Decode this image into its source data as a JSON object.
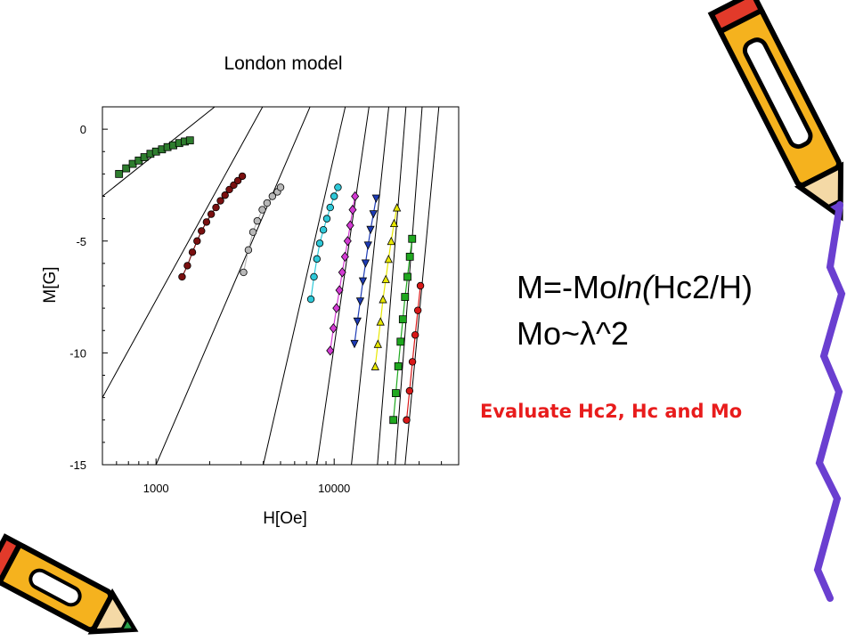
{
  "slide": {
    "formula_line1_prefix": "M=-Mo",
    "formula_line1_ln": "ln(",
    "formula_line1_suffix": "Hc2/H)",
    "formula_line2": "Mo~λ^2",
    "note": "Evaluate Hc2, Hc and Mo",
    "note_color": "#e81c1c",
    "decorations": [
      "pencil-icon",
      "pencil-icon"
    ]
  },
  "chart_data": {
    "type": "scatter",
    "title": "London model",
    "xlabel": "H[Oe]",
    "ylabel": "M[G]",
    "xscale": "log",
    "xlim": [
      500,
      50000
    ],
    "ylim": [
      -15,
      1
    ],
    "xticks": [
      1000,
      10000
    ],
    "xtick_labels": [
      "1000",
      "10000"
    ],
    "yticks": [
      0,
      -5,
      -10,
      -15
    ],
    "ytick_labels": [
      "0",
      "-5",
      "-10",
      "-15"
    ],
    "grid": false,
    "legend": "none",
    "fit_lines": [
      {
        "x": [
          500,
          3300
        ],
        "y": [
          -3.0,
          2.2
        ]
      },
      {
        "x": [
          500,
          4800
        ],
        "y": [
          -12.0,
          2.2
        ]
      },
      {
        "x": [
          1000,
          8500
        ],
        "y": [
          -15.0,
          2.2
        ]
      },
      {
        "x": [
          4000,
          12500
        ],
        "y": [
          -15.0,
          2.2
        ]
      },
      {
        "x": [
          8000,
          16500
        ],
        "y": [
          -15.0,
          2.2
        ]
      },
      {
        "x": [
          12500,
          21000
        ],
        "y": [
          -15.0,
          2.2
        ]
      },
      {
        "x": [
          17500,
          26000
        ],
        "y": [
          -15.0,
          2.2
        ]
      },
      {
        "x": [
          22000,
          32000
        ],
        "y": [
          -15.0,
          2.2
        ]
      },
      {
        "x": [
          25000,
          40000
        ],
        "y": [
          -15.0,
          2.2
        ]
      }
    ],
    "series": [
      {
        "color": "#2e7d2e",
        "marker": "square",
        "x": [
          620,
          680,
          740,
          800,
          860,
          930,
          1000,
          1080,
          1160,
          1250,
          1350,
          1450,
          1550
        ],
        "y": [
          -2.0,
          -1.75,
          -1.55,
          -1.4,
          -1.25,
          -1.1,
          -1.0,
          -0.9,
          -0.8,
          -0.72,
          -0.62,
          -0.55,
          -0.5
        ]
      },
      {
        "color": "#7a1010",
        "marker": "circle",
        "x": [
          1400,
          1500,
          1600,
          1700,
          1800,
          1920,
          2040,
          2170,
          2300,
          2440,
          2580,
          2730,
          2880,
          3050
        ],
        "y": [
          -6.6,
          -6.1,
          -5.5,
          -5.0,
          -4.55,
          -4.15,
          -3.8,
          -3.5,
          -3.2,
          -2.95,
          -2.7,
          -2.5,
          -2.3,
          -2.1
        ]
      },
      {
        "color": "#b8b8b8",
        "marker": "circle",
        "x": [
          3100,
          3300,
          3500,
          3700,
          3950,
          4200,
          4500,
          4800,
          5000
        ],
        "y": [
          -6.4,
          -5.4,
          -4.6,
          -4.1,
          -3.6,
          -3.3,
          -3.0,
          -2.8,
          -2.6
        ]
      },
      {
        "color": "#2ec8d8",
        "marker": "circle",
        "x": [
          7400,
          7700,
          8000,
          8300,
          8700,
          9100,
          9500,
          10000,
          10500
        ],
        "y": [
          -7.6,
          -6.6,
          -5.8,
          -5.1,
          -4.5,
          -4.0,
          -3.5,
          -3.0,
          -2.6
        ]
      },
      {
        "color": "#d23ad2",
        "marker": "diamond",
        "x": [
          9500,
          9900,
          10300,
          10700,
          11100,
          11500,
          11900,
          12300,
          12700,
          13100
        ],
        "y": [
          -9.9,
          -8.9,
          -8.0,
          -7.2,
          -6.4,
          -5.7,
          -5.0,
          -4.3,
          -3.6,
          -3.0
        ]
      },
      {
        "color": "#1d3bb5",
        "marker": "tri-down",
        "x": [
          13000,
          13500,
          14000,
          14500,
          15000,
          15500,
          16000,
          16600,
          17200
        ],
        "y": [
          -9.6,
          -8.6,
          -7.7,
          -6.8,
          -6.0,
          -5.2,
          -4.5,
          -3.8,
          -3.1
        ]
      },
      {
        "color": "#e8e800",
        "marker": "tri-up",
        "x": [
          17000,
          17600,
          18200,
          18800,
          19500,
          20200,
          20900,
          21700,
          22500
        ],
        "y": [
          -10.6,
          -9.6,
          -8.6,
          -7.6,
          -6.7,
          -5.8,
          -5.0,
          -4.2,
          -3.5
        ]
      },
      {
        "color": "#1fa81f",
        "marker": "square",
        "x": [
          21500,
          22200,
          22900,
          23600,
          24300,
          25000,
          25800,
          26600,
          27400
        ],
        "y": [
          -13.0,
          -11.8,
          -10.6,
          -9.5,
          -8.5,
          -7.5,
          -6.6,
          -5.7,
          -4.9
        ]
      },
      {
        "color": "#d81818",
        "marker": "circle",
        "x": [
          25500,
          26500,
          27500,
          28500,
          29500,
          30500
        ],
        "y": [
          -13.0,
          -11.7,
          -10.4,
          -9.2,
          -8.1,
          -7.0
        ]
      }
    ]
  }
}
